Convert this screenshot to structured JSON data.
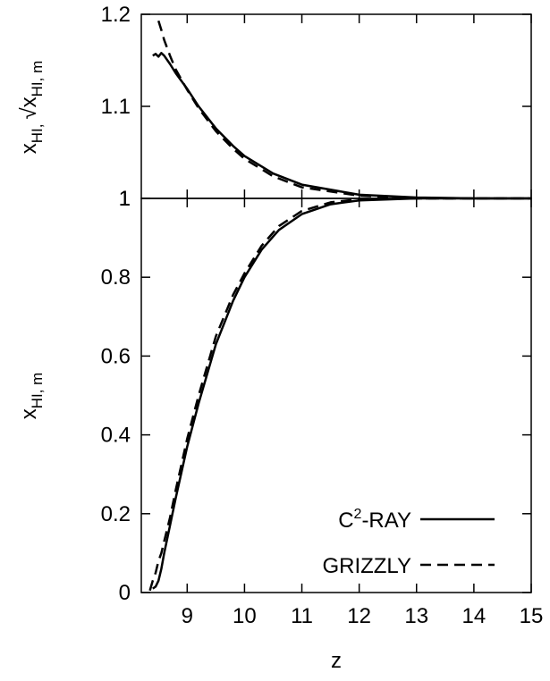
{
  "chart_data": [
    {
      "panel": "top",
      "type": "line",
      "ylabel": "x̄HI, √x̄HI, m",
      "xlim": [
        8.2,
        15
      ],
      "ylim": [
        1.0,
        1.2
      ],
      "yticks": [
        "1.2",
        "1.1",
        "1"
      ],
      "ytick_values": [
        1.2,
        1.1,
        1.0
      ],
      "series": [
        {
          "name": "C2-RAY",
          "style": "solid",
          "x": [
            8.4,
            8.45,
            8.5,
            8.55,
            8.6,
            8.7,
            8.8,
            9.0,
            9.2,
            9.5,
            9.8,
            10.0,
            10.5,
            11.0,
            12.0,
            13.0,
            14.0,
            15.0
          ],
          "y": [
            1.155,
            1.157,
            1.154,
            1.158,
            1.155,
            1.146,
            1.136,
            1.119,
            1.1,
            1.076,
            1.057,
            1.046,
            1.027,
            1.015,
            1.004,
            1.001,
            1.0,
            1.0
          ]
        },
        {
          "name": "GRIZZLY",
          "style": "dashed",
          "x": [
            8.5,
            8.55,
            8.6,
            8.7,
            8.8,
            9.0,
            9.2,
            9.5,
            9.8,
            10.0,
            10.5,
            11.0,
            12.0,
            13.0,
            14.0,
            15.0
          ],
          "y": [
            1.193,
            1.183,
            1.172,
            1.155,
            1.14,
            1.118,
            1.098,
            1.073,
            1.054,
            1.043,
            1.024,
            1.012,
            1.003,
            1.0,
            1.0,
            1.0
          ]
        }
      ]
    },
    {
      "panel": "bottom",
      "type": "line",
      "xlabel": "z",
      "ylabel": "x̄HI, m",
      "xlim": [
        8.2,
        15
      ],
      "ylim": [
        0,
        1
      ],
      "xticks": [
        "9",
        "10",
        "11",
        "12",
        "13",
        "14",
        "15"
      ],
      "xtick_values": [
        9,
        10,
        11,
        12,
        13,
        14,
        15
      ],
      "yticks": [
        "1",
        "0.8",
        "0.6",
        "0.4",
        "0.2",
        "0"
      ],
      "ytick_values": [
        1,
        0.8,
        0.6,
        0.4,
        0.2,
        0
      ],
      "legend_position": "bottom-right",
      "series": [
        {
          "name": "C2-RAY",
          "style": "solid",
          "x": [
            8.4,
            8.45,
            8.5,
            8.55,
            8.6,
            8.7,
            8.8,
            9.0,
            9.2,
            9.5,
            9.8,
            10.0,
            10.3,
            10.6,
            11.0,
            11.5,
            12.0,
            13.0,
            14.0,
            15.0
          ],
          "y": [
            0.01,
            0.015,
            0.03,
            0.06,
            0.1,
            0.17,
            0.24,
            0.37,
            0.48,
            0.63,
            0.74,
            0.8,
            0.87,
            0.92,
            0.96,
            0.985,
            0.995,
            1.0,
            1.0,
            1.0
          ]
        },
        {
          "name": "GRIZZLY",
          "style": "dashed",
          "x": [
            8.35,
            8.4,
            8.45,
            8.5,
            8.55,
            8.6,
            8.7,
            8.8,
            9.0,
            9.2,
            9.5,
            9.8,
            10.0,
            10.3,
            10.6,
            11.0,
            11.5,
            12.0,
            13.0,
            14.0,
            15.0
          ],
          "y": [
            0.005,
            0.03,
            0.05,
            0.08,
            0.1,
            0.13,
            0.19,
            0.26,
            0.39,
            0.5,
            0.65,
            0.755,
            0.81,
            0.88,
            0.93,
            0.968,
            0.99,
            0.998,
            1.0,
            1.0,
            1.0
          ]
        }
      ]
    }
  ],
  "labels": {
    "xlabel": "z",
    "top_ylabel_main": "x",
    "top_ylabel_sub1": "HI,",
    "top_ylabel_sub2": "HI, m",
    "bottom_ylabel_main": "x",
    "bottom_ylabel_sub": "HI, m",
    "legend_c2ray_prefix": "C",
    "legend_c2ray_sup": "2",
    "legend_c2ray_suffix": "-RAY",
    "legend_grizzly": "GRIZZLY"
  }
}
